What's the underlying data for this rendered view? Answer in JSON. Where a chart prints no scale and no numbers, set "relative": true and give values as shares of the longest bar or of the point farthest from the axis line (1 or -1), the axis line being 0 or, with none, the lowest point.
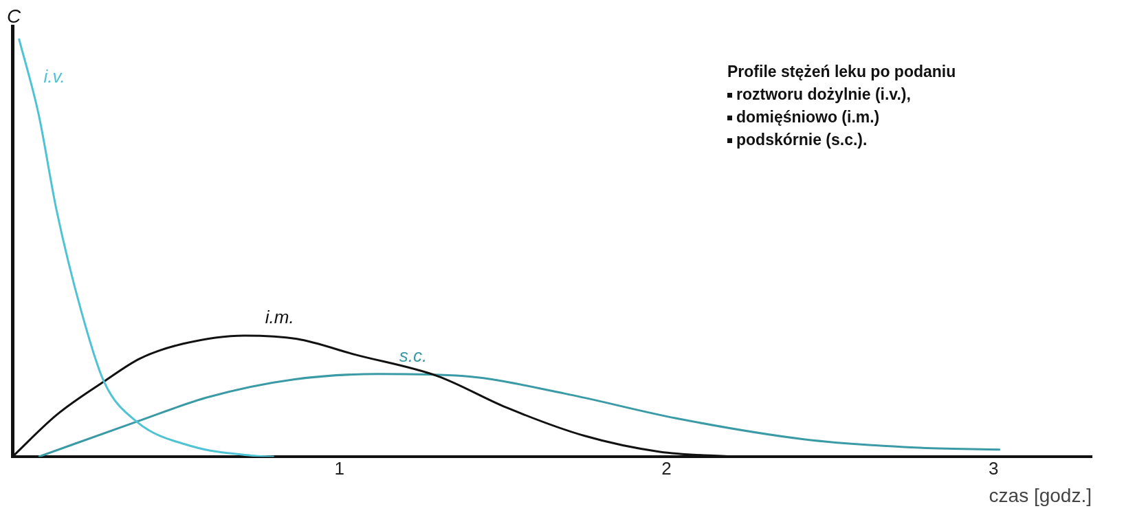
{
  "chart_data": {
    "type": "line",
    "title": "Profile stężeń leku po podaniu",
    "annotations": [
      "roztworu dożylnie (i.v.),",
      "domięśniowo (i.m.)",
      "podskórnie (s.c.)."
    ],
    "xlabel": "czas [godz.]",
    "ylabel": "C",
    "relative": true,
    "xlim": [
      0,
      3.3
    ],
    "xticks": [
      1,
      2,
      3
    ],
    "grid": false,
    "legend": false,
    "marker": "none",
    "line_style": "solid",
    "series": [
      {
        "name": "i.v.",
        "color": "#4fc3d3",
        "x": [
          0.02,
          0.08,
          0.135,
          0.21,
          0.28,
          0.38,
          0.55,
          0.73,
          0.8
        ],
        "values": [
          1,
          0.82,
          0.59,
          0.35,
          0.18,
          0.084,
          0.025,
          0.003,
          0
        ]
      },
      {
        "name": "i.m.",
        "color": "#111111",
        "x": [
          0,
          0.135,
          0.28,
          0.39,
          0.52,
          0.71,
          0.87,
          1.05,
          1.3,
          1.51,
          1.75,
          1.98,
          2.21
        ],
        "values": [
          0,
          0.1,
          0.18,
          0.235,
          0.27,
          0.29,
          0.282,
          0.244,
          0.193,
          0.118,
          0.05,
          0.012,
          0
        ]
      },
      {
        "name": "s.c.",
        "color": "#3a9aa5",
        "x": [
          0.08,
          0.38,
          0.6,
          0.86,
          1.12,
          1.38,
          1.69,
          2.03,
          2.42,
          2.76,
          3.02
        ],
        "values": [
          0,
          0.084,
          0.143,
          0.185,
          0.198,
          0.193,
          0.151,
          0.092,
          0.042,
          0.022,
          0.017
        ]
      }
    ]
  }
}
